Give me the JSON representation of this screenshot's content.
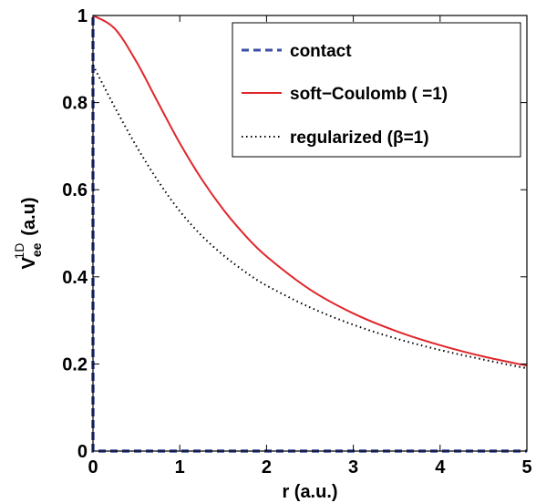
{
  "chart_data": {
    "type": "line",
    "xlabel": "r (a.u.)",
    "ylabel_main": "V",
    "ylabel_sub": "ee",
    "ylabel_sup": "1D",
    "ylabel_unit": "(a.u)",
    "xlim": [
      0,
      5
    ],
    "ylim": [
      0,
      1
    ],
    "xticks": [
      "0",
      "1",
      "2",
      "3",
      "4",
      "5"
    ],
    "yticks": [
      "0",
      "0.2",
      "0.4",
      "0.6",
      "0.8",
      "1"
    ],
    "grid": false,
    "legend_position": "top-right",
    "series": [
      {
        "name": "contact",
        "color": "#3b4fa6",
        "style": "dashed",
        "x": [
          0,
          0,
          0,
          5
        ],
        "y": [
          0,
          1,
          0,
          0
        ]
      },
      {
        "name": "soft−Coulomb (  =1)",
        "color": "#e0262b",
        "style": "solid",
        "x": [
          0,
          0.25,
          0.5,
          0.75,
          1,
          1.25,
          1.5,
          1.75,
          2,
          2.5,
          3,
          3.5,
          4,
          4.5,
          5
        ],
        "y": [
          1.0,
          0.97,
          0.894,
          0.8,
          0.707,
          0.625,
          0.555,
          0.496,
          0.447,
          0.371,
          0.316,
          0.275,
          0.243,
          0.217,
          0.196
        ]
      },
      {
        "name": "regularized (β=1)",
        "color": "#000000",
        "style": "dotted",
        "x": [
          0,
          0.25,
          0.5,
          0.75,
          1,
          1.25,
          1.5,
          1.75,
          2,
          2.5,
          3,
          3.5,
          4,
          4.5,
          5
        ],
        "y": [
          0.886,
          0.79,
          0.7,
          0.62,
          0.551,
          0.495,
          0.45,
          0.412,
          0.38,
          0.33,
          0.29,
          0.258,
          0.232,
          0.21,
          0.19
        ]
      }
    ]
  }
}
